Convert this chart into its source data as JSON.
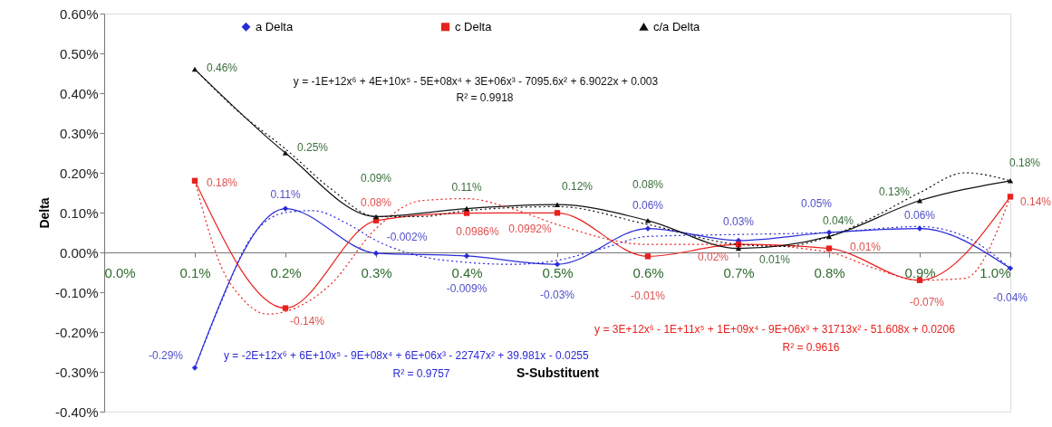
{
  "chart_data": {
    "type": "line",
    "xlabel": "S-Substituent",
    "ylabel": "Delta",
    "xlim": [
      0.0,
      1.0
    ],
    "ylim": [
      -0.4,
      0.6
    ],
    "xticks": [
      {
        "value": 0.0,
        "label": "0.0%"
      },
      {
        "value": 0.1,
        "label": "0.1%"
      },
      {
        "value": 0.2,
        "label": "0.2%"
      },
      {
        "value": 0.3,
        "label": "0.3%"
      },
      {
        "value": 0.4,
        "label": "0.4%"
      },
      {
        "value": 0.5,
        "label": "0.5%"
      },
      {
        "value": 0.6,
        "label": "0.6%"
      },
      {
        "value": 0.7,
        "label": "0.7%"
      },
      {
        "value": 0.8,
        "label": "0.8%"
      },
      {
        "value": 0.9,
        "label": "0.9%"
      },
      {
        "value": 1.0,
        "label": "1.0%"
      }
    ],
    "yticks": [
      {
        "value": -0.4,
        "label": "-0.40%"
      },
      {
        "value": -0.3,
        "label": "-0.30%"
      },
      {
        "value": -0.2,
        "label": "-0.20%"
      },
      {
        "value": -0.1,
        "label": "-0.10%"
      },
      {
        "value": 0.0,
        "label": "0.00%"
      },
      {
        "value": 0.1,
        "label": "0.10%"
      },
      {
        "value": 0.2,
        "label": "0.20%"
      },
      {
        "value": 0.3,
        "label": "0.30%"
      },
      {
        "value": 0.4,
        "label": "0.40%"
      },
      {
        "value": 0.5,
        "label": "0.50%"
      },
      {
        "value": 0.6,
        "label": "0.60%"
      }
    ],
    "x": [
      0.1,
      0.2,
      0.3,
      0.4,
      0.5,
      0.6,
      0.7,
      0.8,
      0.9,
      1.0
    ],
    "grid": false,
    "legend": "top",
    "series": [
      {
        "name": "a Delta",
        "color": "#2b2bd9",
        "marker": "diamond",
        "line_style": "solid",
        "values": [
          -0.29,
          0.11,
          -0.002,
          -0.009,
          -0.03,
          0.06,
          0.03,
          0.05,
          0.06,
          -0.04
        ],
        "value_labels": [
          "-0.29%",
          "0.11%",
          "-0.002%",
          "-0.009%",
          "-0.03%",
          "0.06%",
          "0.03%",
          "0.05%",
          "0.06%",
          "-0.04%"
        ]
      },
      {
        "name": "c Delta",
        "color": "#e8211d",
        "marker": "square",
        "line_style": "solid",
        "values": [
          0.18,
          -0.14,
          0.08,
          0.0986,
          0.0992,
          -0.01,
          0.02,
          0.01,
          -0.07,
          0.14
        ],
        "value_labels": [
          "0.18%",
          "-0.14%",
          "0.08%",
          "0.0986%",
          "0.0992%",
          "-0.01%",
          "0.02%",
          "0.01%",
          "-0.07%",
          "0.14%"
        ]
      },
      {
        "name": "c/a Delta",
        "color": "#111111",
        "marker": "triangle",
        "line_style": "solid",
        "values": [
          0.46,
          0.25,
          0.09,
          0.11,
          0.12,
          0.08,
          0.01,
          0.04,
          0.13,
          0.18
        ],
        "value_labels": [
          "0.46%",
          "0.25%",
          "0.09%",
          "0.11%",
          "0.12%",
          "0.08%",
          "0.01%",
          "0.04%",
          "0.13%",
          "0.18%"
        ]
      },
      {
        "line_style": "dotted",
        "marker": "none",
        "color": "#2b2bd9",
        "x": [
          0.1,
          0.13,
          0.16,
          0.2,
          0.23,
          0.27,
          0.3,
          0.35,
          0.4,
          0.45,
          0.5,
          0.55,
          0.6,
          0.7,
          0.8,
          0.9,
          0.95,
          1.0
        ],
        "values": [
          -0.29,
          -0.12,
          0.03,
          0.1,
          0.105,
          0.07,
          0.03,
          -0.01,
          -0.025,
          -0.03,
          -0.02,
          0.01,
          0.04,
          0.045,
          0.05,
          0.065,
          0.04,
          -0.04
        ]
      },
      {
        "line_style": "dotted",
        "marker": "none",
        "color": "#e8211d",
        "x": [
          0.1,
          0.13,
          0.15,
          0.18,
          0.22,
          0.25,
          0.3,
          0.35,
          0.4,
          0.45,
          0.5,
          0.6,
          0.7,
          0.8,
          0.85,
          0.9,
          0.95,
          1.0
        ],
        "values": [
          0.18,
          -0.04,
          -0.11,
          -0.155,
          -0.13,
          -0.08,
          0.06,
          0.13,
          0.135,
          0.11,
          0.07,
          0.02,
          0.02,
          0.0,
          -0.04,
          -0.07,
          -0.065,
          0.14
        ]
      },
      {
        "line_style": "dotted",
        "marker": "none",
        "color": "#111111",
        "x": [
          0.1,
          0.15,
          0.2,
          0.25,
          0.3,
          0.35,
          0.4,
          0.5,
          0.6,
          0.7,
          0.75,
          0.8,
          0.85,
          0.9,
          0.95,
          1.0
        ],
        "values": [
          0.46,
          0.35,
          0.26,
          0.16,
          0.09,
          0.09,
          0.105,
          0.115,
          0.07,
          0.02,
          0.015,
          0.04,
          0.09,
          0.15,
          0.2,
          0.18
        ]
      }
    ],
    "annotations": [
      "y = -1E+12x⁶ + 4E+10x⁵ - 5E+08x⁴ + 3E+06x³ - 7095.6x² + 6.9022x + 0.003",
      "R² = 0.9918",
      "y = -2E+12x⁶ + 6E+10x⁵ - 9E+08x⁴ + 6E+06x³ - 22747x² + 39.981x - 0.0255",
      "R² = 0.9757",
      "y = 3E+12x⁶ - 1E+11x⁵ + 1E+09x⁴ - 9E+06x³ + 31713x² - 51.608x + 0.0206",
      "R² = 0.9616"
    ]
  }
}
